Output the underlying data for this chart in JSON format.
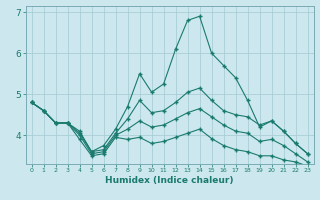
{
  "xlabel": "Humidex (Indice chaleur)",
  "background_color": "#cce8ee",
  "grid_color": "#aacdd5",
  "line_color": "#1a7a6e",
  "x": [
    0,
    1,
    2,
    3,
    4,
    5,
    6,
    7,
    8,
    9,
    10,
    11,
    12,
    13,
    14,
    15,
    16,
    17,
    18,
    19,
    20,
    21,
    22,
    23
  ],
  "line1": [
    4.8,
    4.6,
    4.3,
    4.3,
    4.1,
    3.6,
    3.75,
    4.15,
    4.7,
    5.5,
    5.05,
    5.25,
    6.1,
    6.8,
    6.9,
    6.0,
    5.7,
    5.4,
    4.85,
    4.2,
    4.35,
    4.1,
    3.8,
    3.55
  ],
  "line2": [
    4.8,
    4.6,
    4.3,
    4.3,
    4.05,
    3.6,
    3.65,
    4.05,
    4.4,
    4.85,
    4.55,
    4.6,
    4.8,
    5.05,
    5.15,
    4.85,
    4.6,
    4.5,
    4.45,
    4.25,
    4.35,
    4.1,
    3.8,
    3.55
  ],
  "line3": [
    4.8,
    4.6,
    4.3,
    4.3,
    4.0,
    3.55,
    3.6,
    4.0,
    4.15,
    4.35,
    4.2,
    4.25,
    4.4,
    4.55,
    4.65,
    4.45,
    4.25,
    4.1,
    4.05,
    3.85,
    3.9,
    3.75,
    3.55,
    3.35
  ],
  "line4": [
    4.8,
    4.6,
    4.3,
    4.3,
    3.9,
    3.5,
    3.55,
    3.95,
    3.9,
    3.95,
    3.8,
    3.85,
    3.95,
    4.05,
    4.15,
    3.92,
    3.75,
    3.65,
    3.6,
    3.5,
    3.5,
    3.4,
    3.35,
    3.25
  ],
  "ylim": [
    3.3,
    7.15
  ],
  "yticks": [
    4,
    5,
    6,
    7
  ],
  "xlim": [
    -0.5,
    23.5
  ]
}
